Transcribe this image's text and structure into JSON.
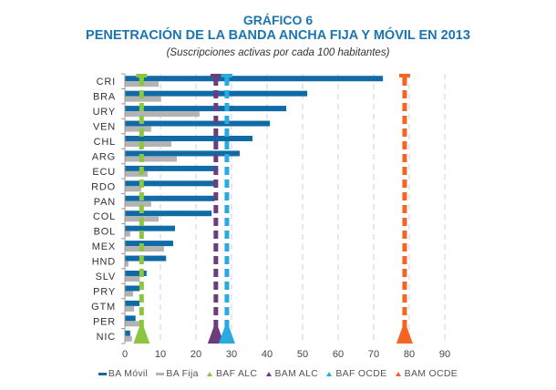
{
  "chart_data": {
    "type": "bar",
    "orientation": "horizontal",
    "title": "GRÁFICO 6",
    "subtitle": "PENETRACIÓN DE LA BANDA ANCHA FIJA Y MÓVIL EN 2013",
    "note": "(Suscripciones activas por cada 100 habitantes)",
    "xlabel": "",
    "ylabel": "",
    "xlim": [
      0,
      90
    ],
    "xticks": [
      0,
      10,
      20,
      30,
      40,
      50,
      60,
      70,
      80,
      90
    ],
    "grid": "vertical-dashed",
    "legend_position": "bottom",
    "categories": [
      "CRI",
      "BRA",
      "URY",
      "VEN",
      "CHL",
      "ARG",
      "ECU",
      "RDO",
      "PAN",
      "COL",
      "BOL",
      "MEX",
      "HND",
      "SLV",
      "PRY",
      "GTM",
      "PER",
      "NIC"
    ],
    "series": [
      {
        "name": "BA Móvil",
        "color": "#0f6aa6",
        "values": [
          72.6,
          51.3,
          45.4,
          40.8,
          35.9,
          32.3,
          26.2,
          25.4,
          25.3,
          24.4,
          14.1,
          13.6,
          11.6,
          6.1,
          4.2,
          4.1,
          3.0,
          1.5
        ]
      },
      {
        "name": "BA Fija",
        "color": "#b3b3b3",
        "values": [
          9.5,
          10.2,
          21.0,
          7.4,
          13.1,
          14.6,
          6.4,
          4.6,
          7.4,
          9.5,
          1.5,
          11.0,
          1.0,
          4.2,
          2.3,
          2.6,
          5.0,
          2.0
        ]
      }
    ],
    "reference_lines": [
      {
        "name": "BAF ALC",
        "color": "#8cc63f",
        "value": 4.7
      },
      {
        "name": "BAM ALC",
        "color": "#6b3d7d",
        "value": 25.6
      },
      {
        "name": "BAF OCDE",
        "color": "#29abe2",
        "value": 28.7
      },
      {
        "name": "BAM OCDE",
        "color": "#f26522",
        "value": 78.7
      }
    ]
  }
}
